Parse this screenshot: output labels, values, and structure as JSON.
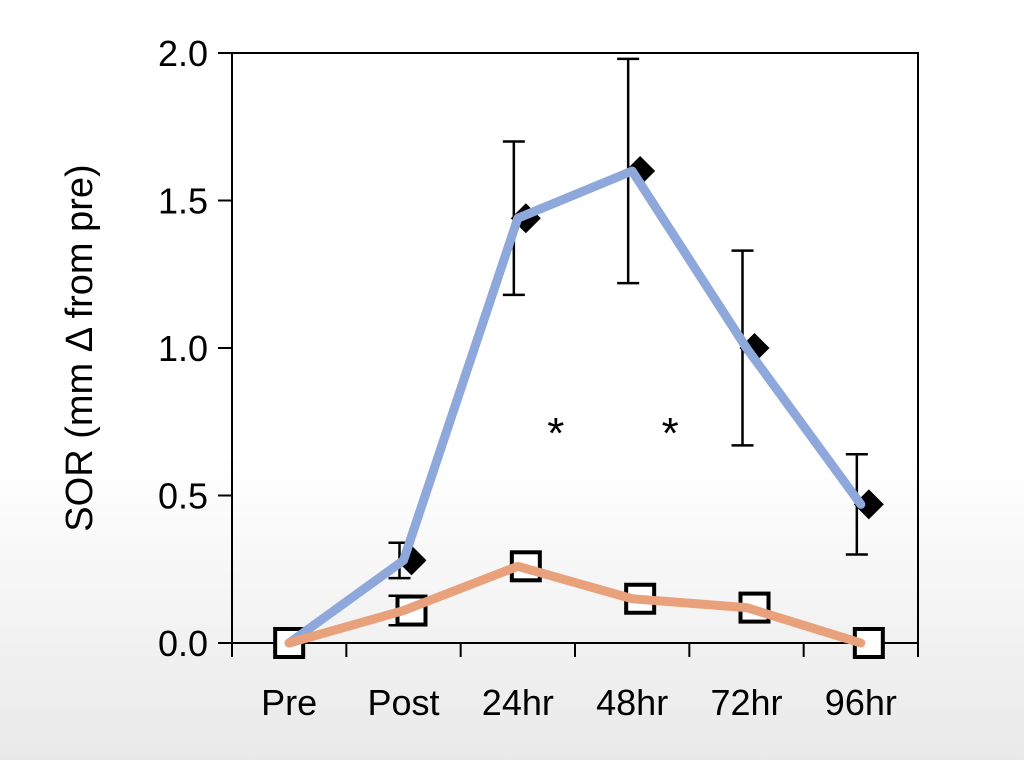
{
  "chart_data": {
    "type": "line",
    "categories": [
      "Pre",
      "Post",
      "24hr",
      "48hr",
      "72hr",
      "96hr"
    ],
    "ylabel": "SOR (mm Δ from pre)",
    "ylim": [
      0,
      2.0
    ],
    "yticks": [
      0,
      0.5,
      1.0,
      1.5,
      2.0
    ],
    "ytick_labels": [
      "0.0",
      "0.5",
      "1.0",
      "1.5",
      "2.0"
    ],
    "grid": false,
    "legend": "none",
    "series": [
      {
        "marker": "diamond",
        "line_color": "#8fa8dc",
        "values": [
          0.0,
          0.28,
          1.44,
          1.6,
          1.0,
          0.47
        ],
        "error": [
          0,
          0.06,
          0.26,
          0.38,
          0.33,
          0.17
        ]
      },
      {
        "marker": "square",
        "line_color": "#e8a17a",
        "values": [
          0.0,
          0.11,
          0.26,
          0.15,
          0.12,
          0.0
        ],
        "error": [
          0,
          0.05,
          0,
          0,
          0,
          0
        ]
      }
    ],
    "annotations": [
      {
        "text": "*",
        "category": "24hr"
      },
      {
        "text": "*",
        "category": "48hr"
      }
    ]
  }
}
